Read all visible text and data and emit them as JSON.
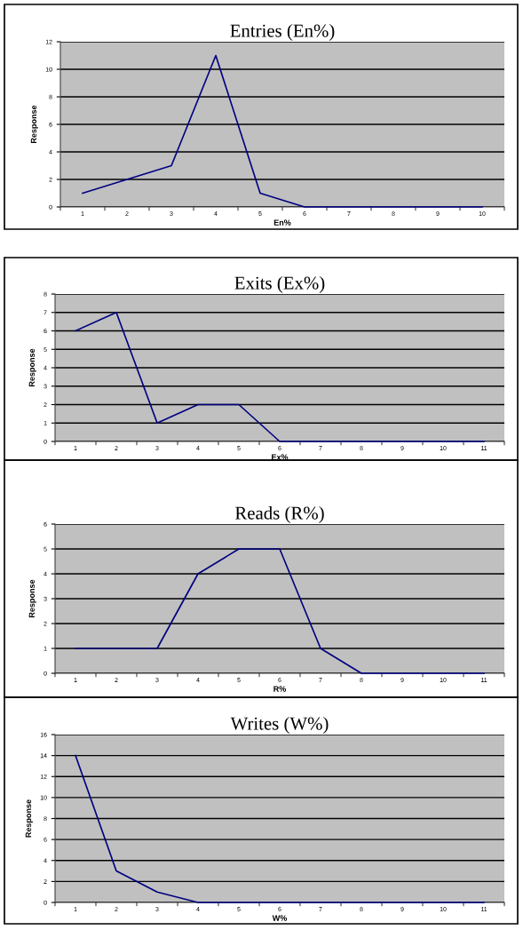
{
  "chart_data": [
    {
      "type": "line",
      "title": "Entries (En%)",
      "xlabel": "En%",
      "ylabel": "Response",
      "categories": [
        "1",
        "2",
        "3",
        "4",
        "5",
        "6",
        "7",
        "8",
        "9",
        "10"
      ],
      "series": [
        {
          "color": "#000080",
          "values": [
            1,
            2,
            3,
            11,
            1,
            0,
            0,
            0,
            0,
            0
          ]
        }
      ],
      "ylim": [
        0,
        12
      ],
      "yticks": [
        0,
        2,
        4,
        6,
        8,
        10,
        12
      ],
      "grid": "y"
    },
    {
      "type": "line",
      "title": "Exits (Ex%)",
      "xlabel": "Ex%",
      "ylabel": "Response",
      "categories": [
        "1",
        "2",
        "3",
        "4",
        "5",
        "6",
        "7",
        "8",
        "9",
        "10",
        "11"
      ],
      "series": [
        {
          "color": "#000080",
          "values": [
            6,
            7,
            1,
            2,
            2,
            0,
            0,
            0,
            0,
            0,
            0
          ]
        }
      ],
      "ylim": [
        0,
        8
      ],
      "yticks": [
        0,
        1,
        2,
        3,
        4,
        5,
        6,
        7,
        8
      ],
      "grid": "y"
    },
    {
      "type": "line",
      "title": "Reads (R%)",
      "xlabel": "R%",
      "ylabel": "Response",
      "categories": [
        "1",
        "2",
        "3",
        "4",
        "5",
        "6",
        "7",
        "8",
        "9",
        "10",
        "11"
      ],
      "series": [
        {
          "color": "#000080",
          "values": [
            1,
            1,
            1,
            4,
            5,
            5,
            1,
            0,
            0,
            0,
            0
          ]
        }
      ],
      "ylim": [
        0,
        6
      ],
      "yticks": [
        0,
        1,
        2,
        3,
        4,
        5,
        6
      ],
      "grid": "y"
    },
    {
      "type": "line",
      "title": "Writes (W%)",
      "xlabel": "W%",
      "ylabel": "Response",
      "categories": [
        "1",
        "2",
        "3",
        "4",
        "5",
        "6",
        "7",
        "8",
        "9",
        "10",
        "11"
      ],
      "series": [
        {
          "color": "#000080",
          "values": [
            14,
            3,
            1,
            0,
            0,
            0,
            0,
            0,
            0,
            0,
            0
          ]
        }
      ],
      "ylim": [
        0,
        16
      ],
      "yticks": [
        0,
        2,
        4,
        6,
        8,
        10,
        12,
        14,
        16
      ],
      "grid": "y"
    }
  ]
}
